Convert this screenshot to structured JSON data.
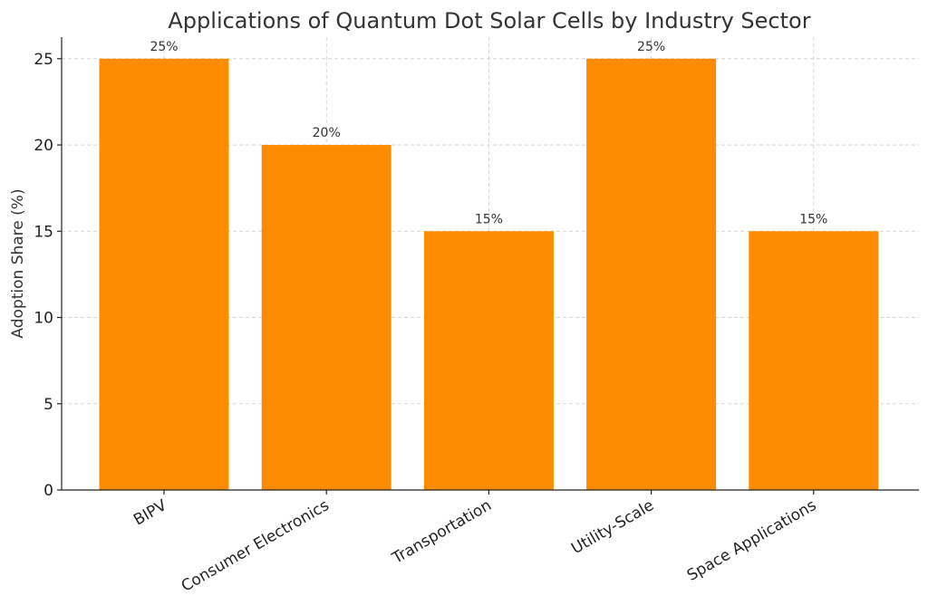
{
  "chart_data": {
    "type": "bar",
    "title": "Applications of Quantum Dot Solar Cells by Industry Sector",
    "xlabel": "",
    "ylabel": "Adoption Share (%)",
    "categories": [
      "BIPV",
      "Consumer Electronics",
      "Transportation",
      "Utility-Scale",
      "Space Applications"
    ],
    "values": [
      25,
      20,
      15,
      25,
      15
    ],
    "data_labels": [
      "25%",
      "20%",
      "15%",
      "25%",
      "15%"
    ],
    "yticks": [
      0,
      5,
      10,
      15,
      20,
      25
    ],
    "ytick_labels": [
      "0",
      "5",
      "10",
      "15",
      "20",
      "25"
    ],
    "ylim": [
      0,
      26.25
    ],
    "grid": true,
    "legend": "none",
    "colors": {
      "bar": "#FF8C00",
      "grid": "#cccccc",
      "text": "#333333",
      "axis": "#222222"
    }
  }
}
